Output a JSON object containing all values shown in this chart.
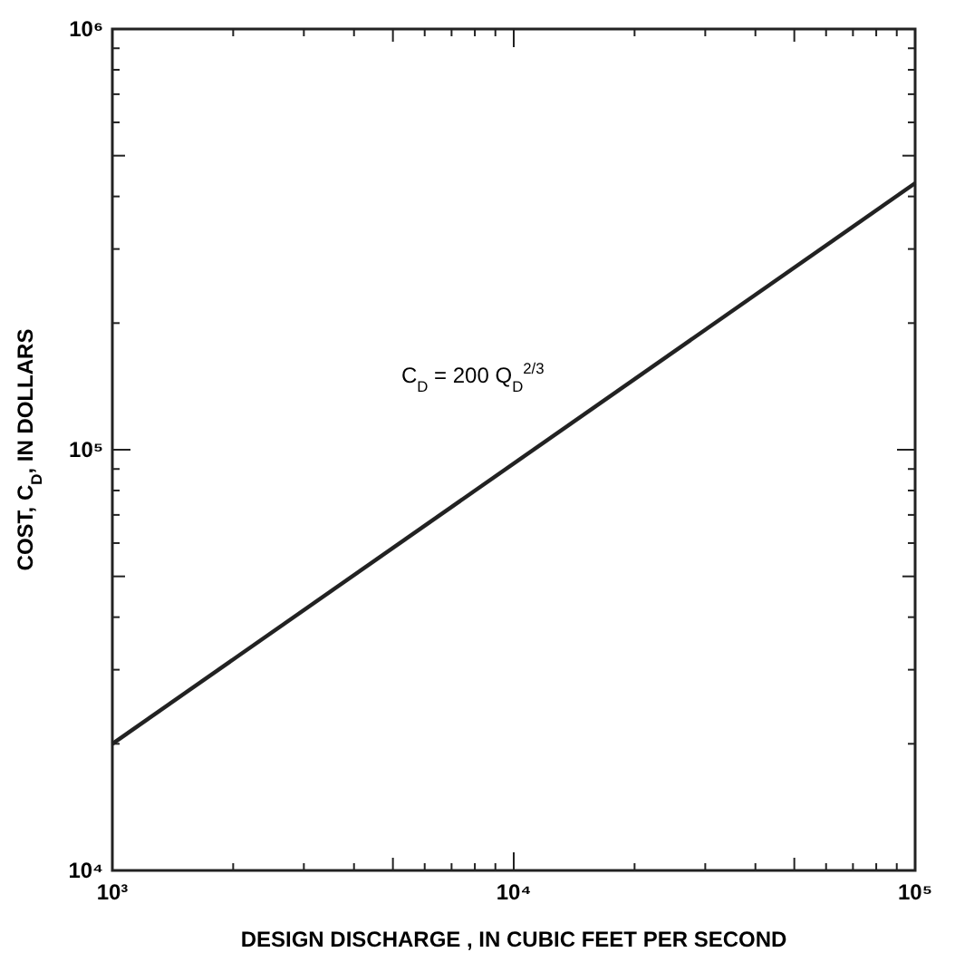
{
  "chart_data": {
    "type": "line",
    "xlabel": "DESIGN DISCHARGE , IN CUBIC FEET PER SECOND",
    "ylabel": "COST, C$_{D}$, IN DOLLARS",
    "log": "xy",
    "grid": false,
    "marker": "none",
    "line_style": "solid",
    "xlim": [
      1000,
      100000
    ],
    "ylim": [
      10000,
      1000000
    ],
    "xticks": [
      {
        "value": 1000,
        "label": "10³"
      },
      {
        "value": 2000,
        "label": null
      },
      {
        "value": 3000,
        "label": null
      },
      {
        "value": 4000,
        "label": null
      },
      {
        "value": 5000,
        "label": null
      },
      {
        "value": 6000,
        "label": null
      },
      {
        "value": 7000,
        "label": null
      },
      {
        "value": 8000,
        "label": null
      },
      {
        "value": 9000,
        "label": null
      },
      {
        "value": 10000,
        "label": "10⁴"
      },
      {
        "value": 20000,
        "label": null
      },
      {
        "value": 30000,
        "label": null
      },
      {
        "value": 40000,
        "label": null
      },
      {
        "value": 50000,
        "label": null
      },
      {
        "value": 60000,
        "label": null
      },
      {
        "value": 70000,
        "label": null
      },
      {
        "value": 80000,
        "label": null
      },
      {
        "value": 90000,
        "label": null
      },
      {
        "value": 100000,
        "label": "10⁵"
      }
    ],
    "yticks": [
      {
        "value": 10000,
        "label": "10⁴"
      },
      {
        "value": 20000,
        "label": null
      },
      {
        "value": 30000,
        "label": null
      },
      {
        "value": 40000,
        "label": null
      },
      {
        "value": 50000,
        "label": null
      },
      {
        "value": 60000,
        "label": null
      },
      {
        "value": 70000,
        "label": null
      },
      {
        "value": 80000,
        "label": null
      },
      {
        "value": 90000,
        "label": null
      },
      {
        "value": 100000,
        "label": "10⁵"
      },
      {
        "value": 200000,
        "label": null
      },
      {
        "value": 300000,
        "label": null
      },
      {
        "value": 400000,
        "label": null
      },
      {
        "value": 500000,
        "label": null
      },
      {
        "value": 600000,
        "label": null
      },
      {
        "value": 700000,
        "label": null
      },
      {
        "value": 800000,
        "label": null
      },
      {
        "value": 900000,
        "label": null
      },
      {
        "value": 1000000,
        "label": "10⁶"
      }
    ],
    "series": [
      {
        "color": "#222222",
        "x": [
          1000,
          100000
        ],
        "values": [
          20000,
          430000
        ]
      }
    ],
    "annotations": [
      "C$_{D}$ = 200 Q$_{D}$$^{2/3}$"
    ]
  }
}
